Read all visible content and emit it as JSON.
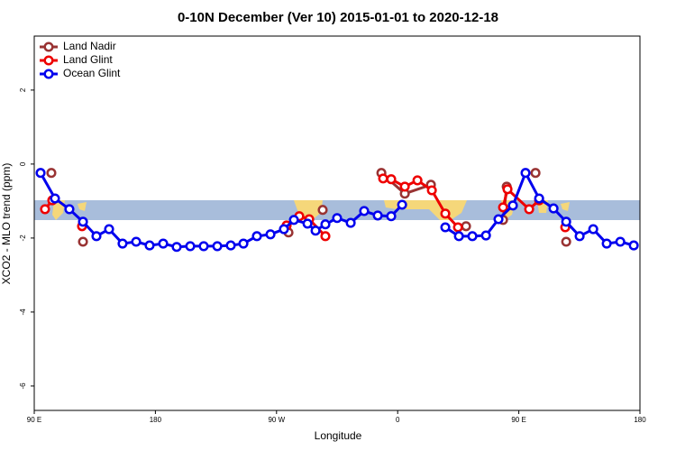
{
  "chart_data": {
    "type": "line",
    "title": "0-10N December (Ver 10)   2015-01-01 to 2020-12-18",
    "xlabel": "Longitude",
    "ylabel": "XCO2 - MLO trend (ppm)",
    "xlim": [
      90,
      540
    ],
    "ylim": [
      -6.66,
      3.46
    ],
    "xticks": [
      {
        "value": 90,
        "label": "90 E"
      },
      180,
      {
        "value": 270,
        "label": "90 W"
      },
      {
        "value": 360,
        "label": "0"
      },
      {
        "value": 450,
        "label": "90 E"
      },
      {
        "value": 540,
        "label": "180"
      }
    ],
    "yticks": [
      -6,
      -4,
      -2,
      0,
      2
    ],
    "legend": "top-left",
    "series": [
      {
        "name": "Land Nadir",
        "color": "#993333",
        "x": [
          102.7,
          null,
          126.2,
          null,
          278.9,
          null,
          304.3,
          null,
          347.9,
          365.3,
          384.7,
          null,
          410.8,
          null,
          438.3,
          441,
          null,
          462.4,
          null,
          485.2
        ],
        "values": [
          -0.24,
          null,
          -2.1,
          null,
          -1.85,
          null,
          -1.24,
          null,
          -0.24,
          -0.8,
          -0.56,
          null,
          -1.68,
          null,
          -1.51,
          -0.61,
          null,
          -0.24,
          null,
          -2.1
        ]
      },
      {
        "name": "Land Glint",
        "color": "#ee0000",
        "x": [
          98,
          103.4,
          null,
          125.5,
          null,
          277.5,
          286.9,
          294.3,
          306.3,
          null,
          349.2,
          355.2,
          365.3,
          374.7,
          385.4,
          395.4,
          404.8,
          null,
          438.3,
          441.6,
          457.7,
          465.1,
          null,
          484.5
        ],
        "values": [
          -1.22,
          -0.98,
          null,
          -1.68,
          null,
          -1.66,
          -1.41,
          -1.49,
          -1.95,
          null,
          -0.39,
          -0.41,
          -0.61,
          -0.44,
          -0.71,
          -1.34,
          -1.71,
          null,
          -1.17,
          -0.68,
          -1.22,
          -0.98,
          null,
          -1.71
        ]
      },
      {
        "name": "Ocean Glint",
        "color": "#0000ee",
        "x": [
          94.7,
          105.4,
          116.1,
          126.2,
          136.2,
          145.6,
          155.6,
          165.7,
          175.7,
          185.8,
          195.8,
          205.9,
          215.9,
          226,
          236,
          245.4,
          255.4,
          265.5,
          275.5,
          282.9,
          293,
          299,
          306.3,
          315,
          325.1,
          335.1,
          345.2,
          355.2,
          363.3,
          null,
          395.4,
          405.5,
          415.5,
          425.6,
          434.9,
          445.6,
          455,
          465.1,
          475.8,
          485.2,
          495.2,
          505.3,
          515.3,
          525.4,
          535.4
        ],
        "values": [
          -0.24,
          -0.93,
          -1.22,
          -1.56,
          -1.95,
          -1.76,
          -2.15,
          -2.1,
          -2.2,
          -2.15,
          -2.24,
          -2.22,
          -2.22,
          -2.22,
          -2.2,
          -2.15,
          -1.95,
          -1.9,
          -1.76,
          -1.51,
          -1.61,
          -1.8,
          -1.63,
          -1.46,
          -1.59,
          -1.27,
          -1.39,
          -1.41,
          -1.1,
          null,
          -1.71,
          -1.95,
          -1.95,
          -1.93,
          -1.49,
          -1.12,
          -0.24,
          -0.93,
          -1.2,
          -1.56,
          -1.95,
          -1.76,
          -2.15,
          -2.1,
          -2.2
        ]
      }
    ]
  }
}
